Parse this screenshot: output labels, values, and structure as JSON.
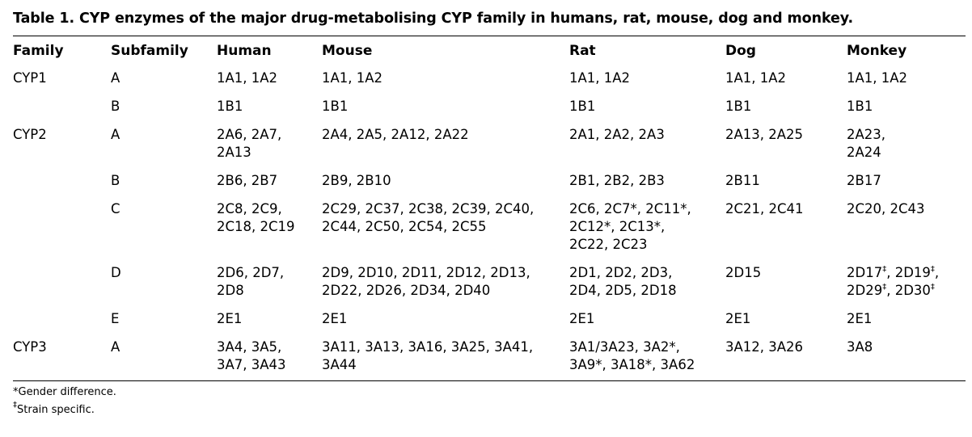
{
  "title": "Table 1. CYP enzymes of the major drug-metabolising CYP family in humans, rat, mouse, dog and monkey.",
  "headers": [
    "Family",
    "Subfamily",
    "Human",
    "Mouse",
    "Rat",
    "Dog",
    "Monkey"
  ],
  "rows": [
    {
      "family": "CYP1",
      "subfamily": "A",
      "human": [
        "1A1, 1A2"
      ],
      "mouse": [
        "1A1, 1A2"
      ],
      "rat": [
        "1A1, 1A2"
      ],
      "dog": [
        "1A1, 1A2"
      ],
      "monkey": [
        "1A1, 1A2"
      ]
    },
    {
      "family": "",
      "subfamily": "B",
      "human": [
        "1B1"
      ],
      "mouse": [
        "1B1"
      ],
      "rat": [
        "1B1"
      ],
      "dog": [
        "1B1"
      ],
      "monkey": [
        "1B1"
      ]
    },
    {
      "family": "CYP2",
      "subfamily": "A",
      "human": [
        "2A6, 2A7,",
        "2A13"
      ],
      "mouse": [
        "2A4, 2A5, 2A12, 2A22"
      ],
      "rat": [
        "2A1, 2A2, 2A3"
      ],
      "dog": [
        "2A13, 2A25"
      ],
      "monkey": [
        "2A23,",
        "2A24"
      ]
    },
    {
      "family": "",
      "subfamily": "B",
      "human": [
        "2B6, 2B7"
      ],
      "mouse": [
        "2B9, 2B10"
      ],
      "rat": [
        "2B1, 2B2, 2B3"
      ],
      "dog": [
        "2B11"
      ],
      "monkey": [
        "2B17"
      ]
    },
    {
      "family": "",
      "subfamily": "C",
      "human": [
        "2C8, 2C9,",
        "2C18, 2C19"
      ],
      "mouse": [
        "2C29, 2C37, 2C38, 2C39, 2C40,",
        "2C44, 2C50, 2C54, 2C55"
      ],
      "rat": [
        "2C6, 2C7*, 2C11*,",
        "2C12*, 2C13*,",
        "2C22, 2C23"
      ],
      "dog": [
        "2C21, 2C41"
      ],
      "monkey": [
        "2C20, 2C43"
      ]
    },
    {
      "family": "",
      "subfamily": "D",
      "human": [
        "2D6, 2D7,",
        "2D8"
      ],
      "mouse": [
        "2D9, 2D10, 2D11, 2D12, 2D13,",
        "2D22, 2D26, 2D34, 2D40"
      ],
      "rat": [
        "2D1, 2D2, 2D3,",
        "2D4, 2D5, 2D18"
      ],
      "dog": [
        "2D15"
      ],
      "monkey": [
        "2D17‡, 2D19‡,",
        "2D29‡, 2D30‡"
      ]
    },
    {
      "family": "",
      "subfamily": "E",
      "human": [
        "2E1"
      ],
      "mouse": [
        "2E1"
      ],
      "rat": [
        "2E1"
      ],
      "dog": [
        "2E1"
      ],
      "monkey": [
        "2E1"
      ]
    },
    {
      "family": "CYP3",
      "subfamily": "A",
      "human": [
        "3A4, 3A5,",
        "3A7, 3A43"
      ],
      "mouse": [
        "3A11, 3A13, 3A16, 3A25, 3A41,",
        "3A44"
      ],
      "rat": [
        "3A1/3A23, 3A2*,",
        "3A9*, 3A18*, 3A62"
      ],
      "dog": [
        "3A12, 3A26"
      ],
      "monkey": [
        "3A8"
      ]
    }
  ],
  "footnotes": [
    "*Gender difference.",
    "‡Strain specific."
  ]
}
